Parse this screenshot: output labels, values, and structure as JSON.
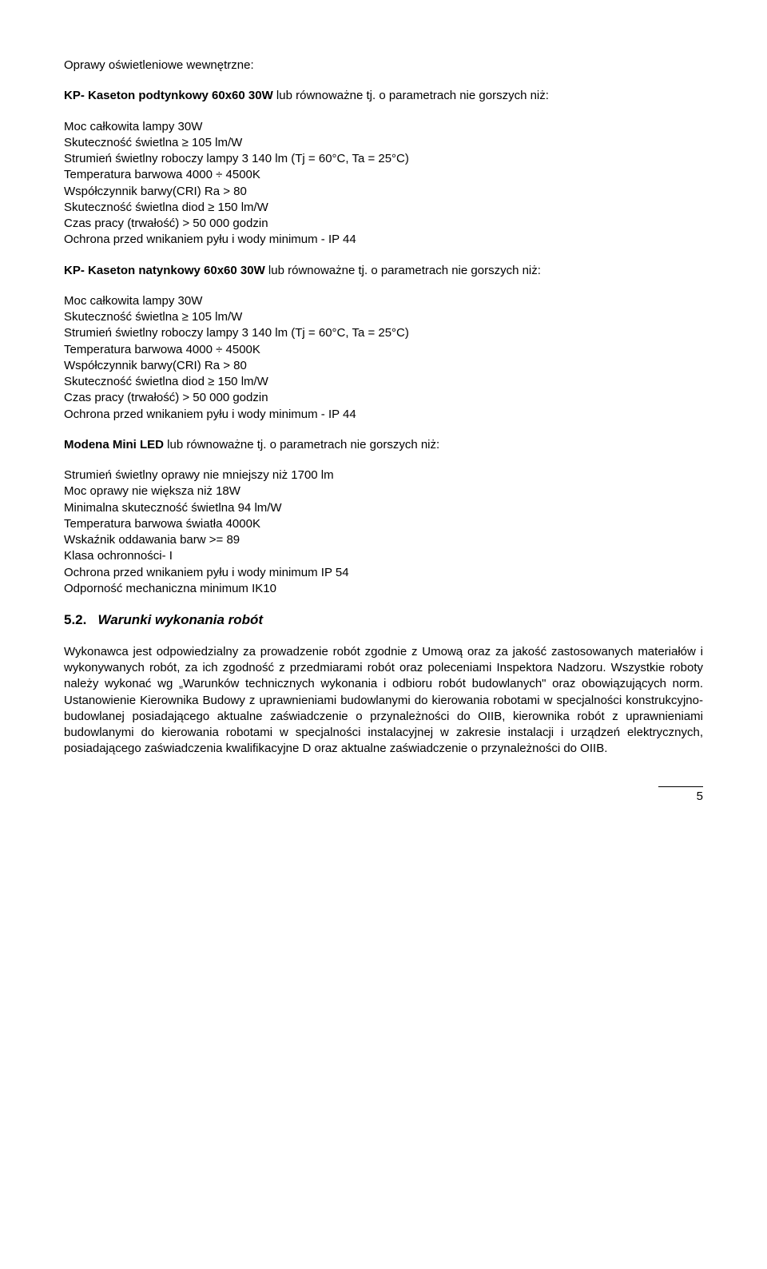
{
  "section_title": "Oprawy oświetleniowe wewnętrzne:",
  "kp_pod": {
    "heading_bold": "KP- Kaseton podtynkowy 60x60 30W",
    "heading_rest": " lub równoważne tj. o parametrach nie gorszych niż:",
    "l1": "Moc całkowita lampy 30W",
    "l2": "Skuteczność świetlna ≥  105 lm/W",
    "l3": "Strumień świetlny roboczy lampy 3 140 lm (Tj = 60°C, Ta = 25°C)",
    "l4": "Temperatura barwowa 4000 ÷ 4500K",
    "l5": "Współczynnik barwy(CRI) Ra > 80",
    "l6": "Skuteczność świetlna diod ≥ 150 lm/W",
    "l7": "Czas pracy (trwałość) > 50 000 godzin",
    "l8": "Ochrona przed wnikaniem pyłu i wody minimum - IP 44"
  },
  "kp_nat": {
    "heading_bold": "KP- Kaseton natynkowy 60x60 30W",
    "heading_rest": " lub równoważne tj. o parametrach nie gorszych niż:",
    "l1": "Moc całkowita lampy 30W",
    "l2": "Skuteczność świetlna ≥  105 lm/W",
    "l3": "Strumień świetlny roboczy lampy 3 140 lm (Tj = 60°C, Ta = 25°C)",
    "l4": "Temperatura barwowa 4000 ÷ 4500K",
    "l5": "Współczynnik barwy(CRI) Ra > 80",
    "l6": "Skuteczność świetlna diod ≥ 150 lm/W",
    "l7": "Czas pracy (trwałość) > 50 000 godzin",
    "l8": "Ochrona przed wnikaniem pyłu i wody minimum - IP 44"
  },
  "modena": {
    "heading_bold": "Modena Mini LED",
    "heading_rest": " lub równoważne tj. o parametrach nie gorszych niż:",
    "l1": "Strumień świetlny oprawy nie mniejszy niż 1700 lm",
    "l2": "Moc oprawy nie większa niż 18W",
    "l3": "Minimalna skuteczność świetlna 94 lm/W",
    "l4": "Temperatura barwowa światła 4000K",
    "l5": "Wskaźnik oddawania barw >= 89",
    "l6": "Klasa ochronności- I",
    "l7": "Ochrona przed wnikaniem pyłu i wody minimum IP 54",
    "l8": "Odporność mechaniczna minimum IK10"
  },
  "h52_num": "5.2.",
  "h52_text": "Warunki wykonania robót",
  "body_para": "Wykonawca jest odpowiedzialny za prowadzenie robót zgodnie z Umową oraz za jakość zastosowanych materiałów i wykonywanych robót, za ich zgodność z przedmiarami robót oraz poleceniami Inspektora Nadzoru. Wszystkie roboty należy wykonać wg „Warunków technicznych wykonania i odbioru robót budowlanych\" oraz obowiązujących norm. Ustanowienie Kierownika Budowy z uprawnieniami budowlanymi do kierowania robotami w specjalności konstrukcyjno-budowlanej posiadającego aktualne zaświadczenie o przynależności do OIIB, kierownika robót z uprawnieniami budowlanymi do kierowania robotami w specjalności instalacyjnej w zakresie instalacji i urządzeń elektrycznych, posiadającego zaświadczenia kwalifikacyjne D oraz aktualne zaświadczenie o przynależności do OIIB.",
  "page_number": "5"
}
